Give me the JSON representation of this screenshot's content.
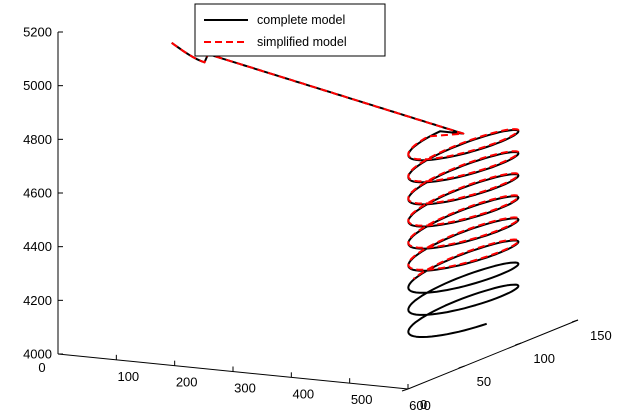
{
  "chart_data": {
    "type": "line",
    "projection": "3d",
    "title": "",
    "xlabel": "",
    "ylabel": "",
    "zlabel": "",
    "grid": false,
    "legend_position": "top-center",
    "xlim": [
      0,
      600
    ],
    "ylim": [
      0,
      150
    ],
    "zlim": [
      4000,
      5200
    ],
    "x_ticks": [
      "0",
      "100",
      "200",
      "300",
      "400",
      "500",
      "600"
    ],
    "y_ticks": [
      "0",
      "50",
      "100",
      "150"
    ],
    "z_ticks": [
      "4000",
      "4200",
      "4400",
      "4600",
      "4800",
      "5000",
      "5200"
    ],
    "trajectory": {
      "descent_start": {
        "x": 20,
        "y": 90,
        "z": 5010
      },
      "descent_end": {
        "x": 520,
        "y": 90,
        "z": 4780
      },
      "helix_center": {
        "x": 520,
        "y": 90
      },
      "helix_radius": 40,
      "helix_top_z": 4780,
      "helix_bottom_z": 4080,
      "helix_turns": 8.5
    },
    "series": [
      {
        "name": "complete model",
        "color": "#000000",
        "dash": "solid"
      },
      {
        "name": "simplified model",
        "color": "#ff0000",
        "dash": "dashed",
        "helix_bottom_z": 4280
      }
    ]
  }
}
